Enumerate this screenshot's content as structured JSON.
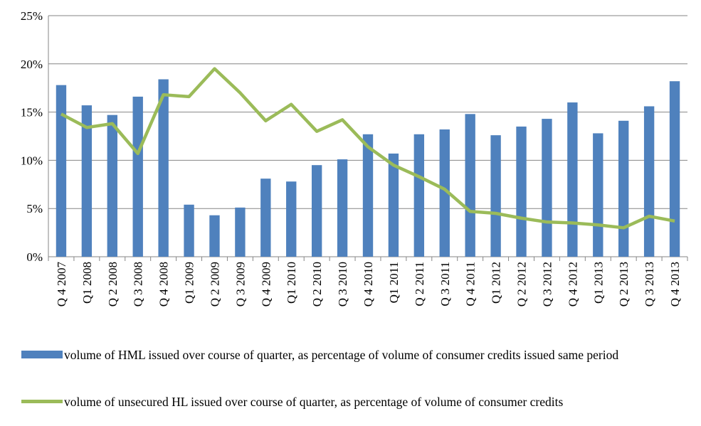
{
  "chart_data": {
    "type": "bar_line",
    "categories": [
      "Q 4 2007",
      "Q1 2008",
      "Q 2 2008",
      "Q 3 2008",
      "Q 4 2008",
      "Q1 2009",
      "Q 2 2009",
      "Q 3 2009",
      "Q 4 2009",
      "Q1 2010",
      "Q 2 2010",
      "Q 3 2010",
      "Q 4 2010",
      "Q1 2011",
      "Q 2 2011",
      "Q 3  2011",
      "Q 4 2011",
      "Q1 2012",
      "Q 2  2012",
      "Q 3 2012",
      "Q 4 2012",
      "Q1 2013",
      "Q 2 2013",
      "Q 3  2013",
      "Q 4 2013"
    ],
    "series": [
      {
        "name": "volume of HML issued over course of quarter, as percentage of volume of consumer credits issued same period",
        "type": "bar",
        "color": "#4f81bd",
        "values": [
          17.8,
          15.7,
          14.7,
          16.6,
          18.4,
          5.4,
          4.3,
          5.1,
          8.1,
          7.8,
          9.5,
          10.1,
          12.7,
          10.7,
          12.7,
          13.2,
          14.8,
          12.6,
          13.5,
          14.3,
          16.0,
          12.8,
          14.1,
          15.6,
          18.2
        ]
      },
      {
        "name": "volume of unsecured HL issued over course of quarter, as percentage of volume of consumer credits",
        "type": "line",
        "color": "#9bbb59",
        "values": [
          14.8,
          13.4,
          13.8,
          10.7,
          16.8,
          16.6,
          19.5,
          17.0,
          14.1,
          15.8,
          13.0,
          14.2,
          11.4,
          9.5,
          8.3,
          7.0,
          4.7,
          4.5,
          4.0,
          3.6,
          3.5,
          3.3,
          3.0,
          4.2,
          3.7
        ]
      }
    ],
    "ylim": [
      0,
      25
    ],
    "yticks": [
      {
        "value": 0,
        "label": "0%"
      },
      {
        "value": 5,
        "label": "5%"
      },
      {
        "value": 10,
        "label": "10%"
      },
      {
        "value": 15,
        "label": "15%"
      },
      {
        "value": 20,
        "label": "20%"
      },
      {
        "value": 25,
        "label": "25%"
      }
    ],
    "grid": true
  }
}
